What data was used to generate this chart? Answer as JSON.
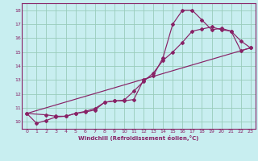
{
  "xlabel": "Windchill (Refroidissement éolien,°C)",
  "bg_color": "#c8eef0",
  "line_color": "#882266",
  "grid_color": "#99ccbb",
  "spine_color": "#882266",
  "xlim": [
    -0.5,
    23.5
  ],
  "ylim": [
    9.5,
    18.5
  ],
  "xticks": [
    0,
    1,
    2,
    3,
    4,
    5,
    6,
    7,
    8,
    9,
    10,
    11,
    12,
    13,
    14,
    15,
    16,
    17,
    18,
    19,
    20,
    21,
    22,
    23
  ],
  "yticks": [
    10,
    11,
    12,
    13,
    14,
    15,
    16,
    17,
    18
  ],
  "line1_x": [
    0,
    1,
    2,
    3,
    4,
    5,
    6,
    7,
    8,
    9,
    10,
    11,
    12,
    13,
    14,
    15,
    16,
    17,
    18,
    19,
    20,
    21,
    22,
    23
  ],
  "line1_y": [
    10.6,
    9.9,
    10.1,
    10.35,
    10.4,
    10.6,
    10.7,
    10.85,
    11.4,
    11.5,
    11.5,
    11.6,
    13.0,
    13.3,
    14.6,
    17.0,
    18.0,
    18.0,
    17.3,
    16.6,
    16.7,
    16.5,
    15.1,
    15.3
  ],
  "line2_x": [
    0,
    2,
    3,
    4,
    5,
    6,
    7,
    8,
    9,
    10,
    11,
    12,
    13,
    14,
    15,
    16,
    17,
    18,
    19,
    20,
    21,
    22,
    23
  ],
  "line2_y": [
    10.6,
    10.5,
    10.4,
    10.4,
    10.6,
    10.75,
    10.95,
    11.4,
    11.5,
    11.55,
    12.2,
    12.9,
    13.5,
    14.4,
    15.0,
    15.7,
    16.5,
    16.65,
    16.8,
    16.6,
    16.5,
    15.8,
    15.3
  ],
  "line3_x": [
    0,
    23
  ],
  "line3_y": [
    10.6,
    15.3
  ]
}
